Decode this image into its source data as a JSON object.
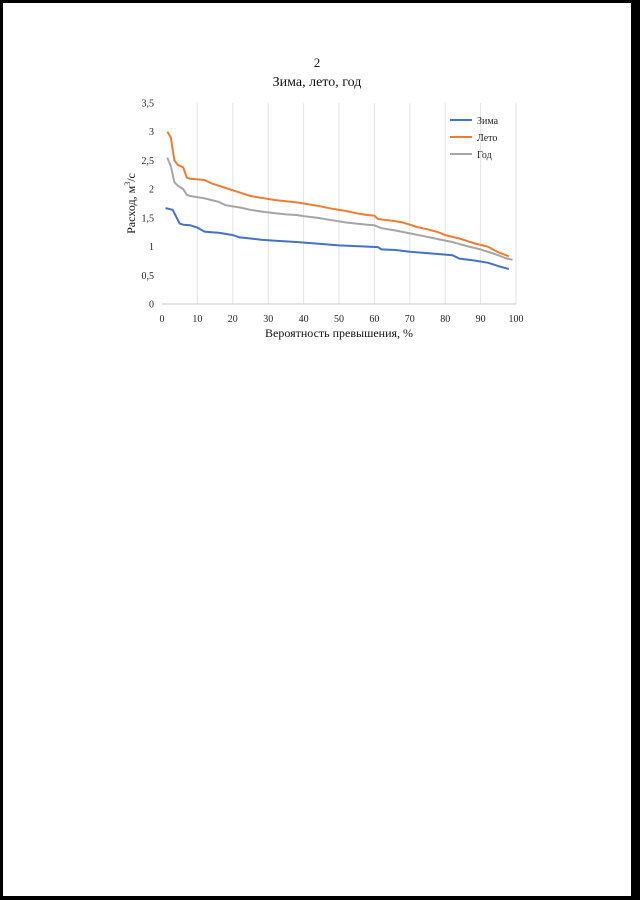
{
  "page": {
    "number": "2"
  },
  "chart_data": {
    "type": "line",
    "title": "Зима, лето, год",
    "xlabel": "Вероятность превышения, %",
    "ylabel": "Расход, м³/с",
    "ylabel_prefix": "Расход, м",
    "ylabel_sup": "3",
    "ylabel_suffix": "/с",
    "xlim": [
      0,
      100
    ],
    "ylim": [
      0,
      3.5
    ],
    "x_ticks": [
      "0",
      "10",
      "20",
      "30",
      "40",
      "50",
      "60",
      "70",
      "80",
      "90",
      "100"
    ],
    "y_ticks": [
      "0",
      "0,5",
      "1",
      "1,5",
      "2",
      "2,5",
      "3",
      "3,5"
    ],
    "grid": "vertical",
    "legend_position": "top-right",
    "series": [
      {
        "name": "Зима",
        "color": "#4472c4",
        "x": [
          1,
          3,
          4,
          5,
          6,
          8,
          10,
          12,
          14,
          16,
          18,
          20,
          22,
          25,
          28,
          32,
          35,
          38,
          42,
          46,
          50,
          54,
          58,
          61,
          62,
          66,
          70,
          74,
          78,
          82,
          84,
          88,
          92,
          95,
          98
        ],
        "y": [
          1.67,
          1.64,
          1.52,
          1.4,
          1.38,
          1.37,
          1.33,
          1.26,
          1.25,
          1.24,
          1.22,
          1.2,
          1.16,
          1.14,
          1.12,
          1.1,
          1.09,
          1.08,
          1.06,
          1.04,
          1.02,
          1.01,
          1.0,
          0.99,
          0.95,
          0.94,
          0.91,
          0.89,
          0.87,
          0.85,
          0.79,
          0.76,
          0.72,
          0.66,
          0.61
        ]
      },
      {
        "name": "Лето",
        "color": "#ed7d31",
        "x": [
          1.5,
          2.5,
          3.5,
          4.5,
          6,
          7,
          8,
          10,
          12,
          14,
          16,
          18,
          20,
          22,
          25,
          28,
          32,
          35,
          38,
          40,
          44,
          48,
          52,
          55,
          58,
          60,
          61,
          65,
          68,
          70,
          72,
          75,
          78,
          80,
          84,
          88,
          92,
          95,
          98
        ],
        "y": [
          3.0,
          2.9,
          2.5,
          2.42,
          2.38,
          2.2,
          2.18,
          2.17,
          2.16,
          2.1,
          2.06,
          2.02,
          1.98,
          1.94,
          1.88,
          1.85,
          1.81,
          1.79,
          1.77,
          1.75,
          1.71,
          1.66,
          1.62,
          1.58,
          1.55,
          1.54,
          1.48,
          1.45,
          1.42,
          1.38,
          1.34,
          1.3,
          1.25,
          1.2,
          1.14,
          1.06,
          1.0,
          0.9,
          0.83
        ]
      },
      {
        "name": "Год",
        "color": "#a5a5a5",
        "x": [
          1.5,
          2.5,
          3.5,
          4.5,
          6,
          7,
          8,
          10,
          12,
          14,
          16,
          18,
          20,
          22,
          25,
          28,
          32,
          35,
          38,
          40,
          44,
          48,
          52,
          55,
          58,
          60,
          62,
          66,
          70,
          74,
          78,
          82,
          86,
          90,
          94,
          97,
          99
        ],
        "y": [
          2.55,
          2.4,
          2.12,
          2.06,
          2.0,
          1.9,
          1.88,
          1.86,
          1.84,
          1.81,
          1.78,
          1.72,
          1.7,
          1.68,
          1.64,
          1.61,
          1.58,
          1.56,
          1.55,
          1.53,
          1.5,
          1.46,
          1.42,
          1.4,
          1.38,
          1.37,
          1.32,
          1.28,
          1.23,
          1.18,
          1.13,
          1.08,
          1.01,
          0.95,
          0.87,
          0.8,
          0.77
        ]
      }
    ]
  }
}
